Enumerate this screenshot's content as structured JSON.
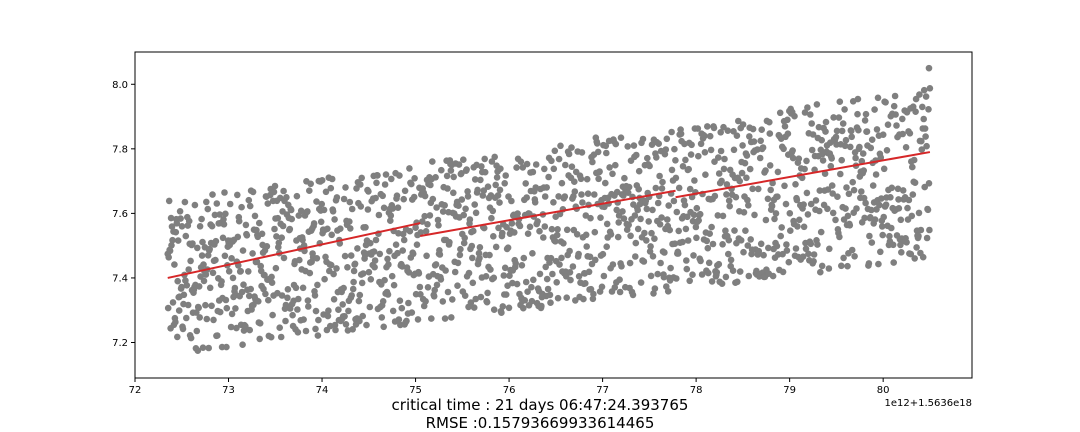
{
  "chart_data": {
    "type": "scatter",
    "title": "",
    "xlabel": "",
    "ylabel": "",
    "xlim": [
      72.0,
      80.95
    ],
    "ylim": [
      7.09,
      8.1
    ],
    "x_offset_label": "1e12+1.5636e18",
    "x_ticks": [
      72,
      73,
      74,
      75,
      76,
      77,
      78,
      79,
      80
    ],
    "x_tick_labels": [
      "72",
      "73",
      "74",
      "75",
      "76",
      "77",
      "78",
      "79",
      "80"
    ],
    "y_ticks": [
      7.2,
      7.4,
      7.6,
      7.8,
      8.0
    ],
    "y_tick_labels": [
      "7.2",
      "7.4",
      "7.6",
      "7.8",
      "8.0"
    ],
    "scatter": {
      "color": "#7f7f7f",
      "x_range": [
        72.35,
        80.5
      ],
      "n_points": 1600,
      "band_lower": {
        "x": [
          72.35,
          80.5
        ],
        "y": [
          7.16,
          7.46
        ]
      },
      "band_upper": {
        "x": [
          72.35,
          80.5
        ],
        "y": [
          7.64,
          7.99
        ]
      },
      "max_point": {
        "x": 80.49,
        "y": 8.05
      }
    },
    "fit_segments": [
      {
        "x": [
          72.35,
          75.05
        ],
        "y": [
          7.4,
          7.57
        ]
      },
      {
        "x": [
          75.05,
          77.78
        ],
        "y": [
          7.53,
          7.67
        ]
      },
      {
        "x": [
          77.78,
          80.5
        ],
        "y": [
          7.65,
          7.79
        ]
      }
    ],
    "fit_color": "#d62728",
    "grid": false
  },
  "captions": {
    "critical_time": "critical time : 21 days 06:47:24.393765",
    "rmse": "RMSE :0.15793669933614465"
  }
}
